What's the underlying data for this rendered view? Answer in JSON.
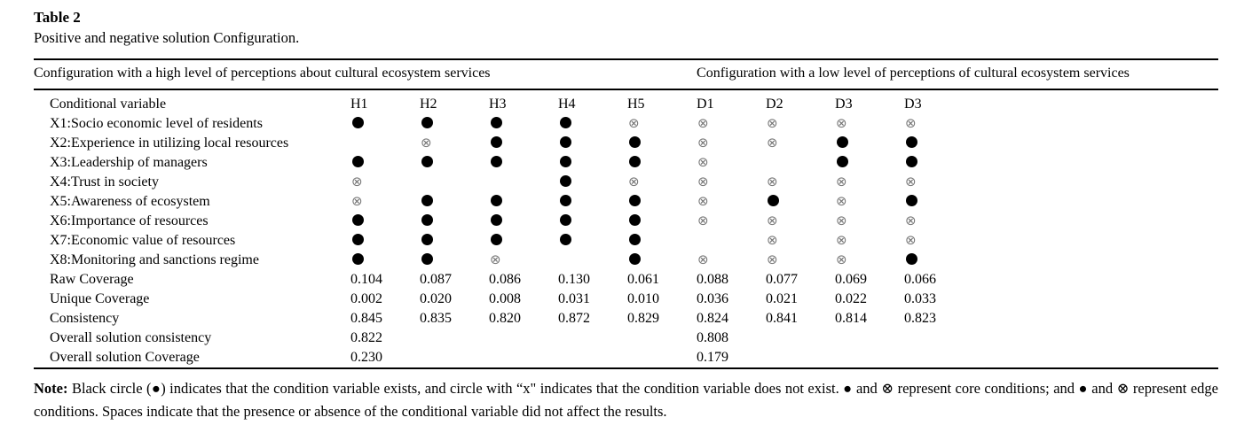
{
  "table": {
    "label": "Table 2",
    "caption": "Positive and negative solution Configuration.",
    "section_headers": {
      "high": "Configuration with a high level of perceptions about cultural ecosystem services",
      "low": "Configuration with a low level of perceptions of cultural ecosystem services"
    },
    "columns": [
      "Conditional variable",
      "H1",
      "H2",
      "H3",
      "H4",
      "H5",
      "D1",
      "D2",
      "D3",
      "D3"
    ],
    "rows": [
      {
        "label": "X1:Socio economic level of residents",
        "cells": [
          "dot",
          "dot",
          "dot",
          "dot",
          "x",
          "x",
          "x",
          "x",
          "x"
        ]
      },
      {
        "label": "X2:Experience in utilizing local resources",
        "cells": [
          "",
          "x",
          "dot",
          "dot",
          "dot",
          "x",
          "x",
          "dot",
          "dot"
        ]
      },
      {
        "label": "X3:Leadership of managers",
        "cells": [
          "dot",
          "dot",
          "dot",
          "dot",
          "dot",
          "x",
          "",
          "dot",
          "dot"
        ]
      },
      {
        "label": "X4:Trust in society",
        "cells": [
          "x",
          "",
          "",
          "dot",
          "x",
          "x",
          "x",
          "x",
          "x"
        ]
      },
      {
        "label": "X5:Awareness of ecosystem",
        "cells": [
          "x",
          "dot",
          "dot",
          "dot",
          "dot",
          "x",
          "dot",
          "x",
          "dot"
        ]
      },
      {
        "label": "X6:Importance of resources",
        "cells": [
          "dot",
          "dot",
          "dot",
          "dot",
          "dot",
          "x",
          "x",
          "x",
          "x"
        ]
      },
      {
        "label": "X7:Economic value of resources",
        "cells": [
          "dot",
          "dot",
          "dot",
          "dot",
          "dot",
          "",
          "x",
          "x",
          "x"
        ]
      },
      {
        "label": "X8:Monitoring and sanctions regime",
        "cells": [
          "dot",
          "dot",
          "x",
          "",
          "dot",
          "x",
          "x",
          "x",
          "dot"
        ]
      }
    ],
    "stat_rows": [
      {
        "label": "Raw Coverage",
        "cells": [
          "0.104",
          "0.087",
          "0.086",
          "0.130",
          "0.061",
          "0.088",
          "0.077",
          "0.069",
          "0.066"
        ]
      },
      {
        "label": "Unique Coverage",
        "cells": [
          "0.002",
          "0.020",
          "0.008",
          "0.031",
          "0.010",
          "0.036",
          "0.021",
          "0.022",
          "0.033"
        ]
      },
      {
        "label": "Consistency",
        "cells": [
          "0.845",
          "0.835",
          "0.820",
          "0.872",
          "0.829",
          "0.824",
          "0.841",
          "0.814",
          "0.823"
        ]
      },
      {
        "label": "Overall solution consistency",
        "cells": [
          "0.822",
          "",
          "",
          "",
          "",
          "0.808",
          "",
          "",
          ""
        ]
      },
      {
        "label": "Overall solution Coverage",
        "cells": [
          "0.230",
          "",
          "",
          "",
          "",
          "0.179",
          "",
          "",
          ""
        ]
      }
    ],
    "note_label": "Note:",
    "note_text": " Black circle (●) indicates that the condition variable exists, and circle with “x\" indicates that the condition variable does not exist. ● and ⊗ represent core conditions; and ● and ⊗ represent edge conditions. Spaces indicate that the presence or absence of the conditional variable did not affect the results."
  },
  "symbols": {
    "dot": "●",
    "x": "⊗"
  }
}
